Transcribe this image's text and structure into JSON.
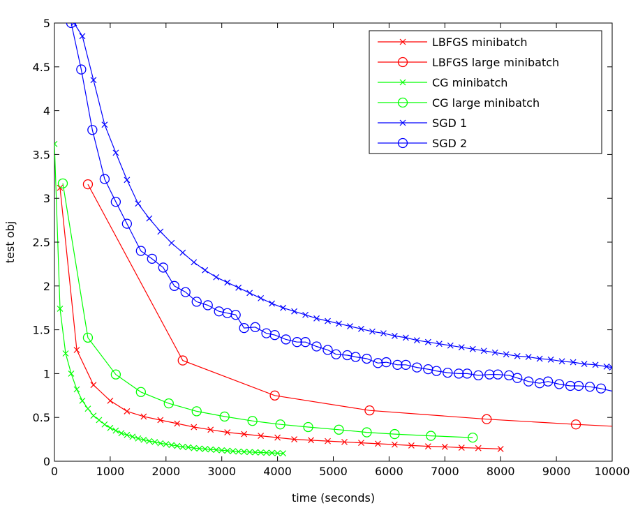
{
  "chart_data": {
    "type": "line",
    "xlabel": "time (seconds)",
    "ylabel": "test obj",
    "xlim": [
      0,
      10000
    ],
    "ylim": [
      0,
      5
    ],
    "xticks": [
      0,
      1000,
      2000,
      3000,
      4000,
      5000,
      6000,
      7000,
      8000,
      9000,
      10000
    ],
    "yticks": [
      0,
      0.5,
      1,
      1.5,
      2,
      2.5,
      3,
      3.5,
      4,
      4.5,
      5
    ],
    "xtick_labels": [
      "0",
      "1000",
      "2000",
      "3000",
      "4000",
      "5000",
      "6000",
      "7000",
      "8000",
      "9000",
      "10000"
    ],
    "ytick_labels": [
      "0",
      "0.5",
      "1",
      "1.5",
      "2",
      "2.5",
      "3",
      "3.5",
      "4",
      "4.5",
      "5"
    ],
    "grid": false,
    "legend_position": "top-right",
    "series": [
      {
        "name": "LBFGS minibatch",
        "color": "#ff0000",
        "marker": "x",
        "x": [
          100,
          400,
          700,
          1000,
          1300,
          1600,
          1900,
          2200,
          2500,
          2800,
          3100,
          3400,
          3700,
          4000,
          4300,
          4600,
          4900,
          5200,
          5500,
          5800,
          6100,
          6400,
          6700,
          7000,
          7300,
          7600,
          8000
        ],
        "y": [
          3.12,
          1.27,
          0.87,
          0.69,
          0.57,
          0.51,
          0.47,
          0.43,
          0.39,
          0.36,
          0.33,
          0.31,
          0.29,
          0.27,
          0.25,
          0.24,
          0.23,
          0.22,
          0.21,
          0.2,
          0.19,
          0.18,
          0.17,
          0.165,
          0.155,
          0.15,
          0.14
        ]
      },
      {
        "name": "LBFGS large minibatch",
        "color": "#ff0000",
        "marker": "o",
        "x": [
          600,
          2300,
          3950,
          5650,
          7750,
          9350,
          10000
        ],
        "y": [
          3.16,
          1.15,
          0.75,
          0.58,
          0.48,
          0.42,
          0.4
        ]
      },
      {
        "name": "CG minibatch",
        "color": "#00ff00",
        "marker": "x",
        "x": [
          0,
          100,
          200,
          300,
          400,
          500,
          600,
          700,
          800,
          900,
          1000,
          1100,
          1200,
          1300,
          1400,
          1500,
          1600,
          1700,
          1800,
          1900,
          2000,
          2100,
          2200,
          2300,
          2400,
          2500,
          2600,
          2700,
          2800,
          2900,
          3000,
          3100,
          3200,
          3300,
          3400,
          3500,
          3600,
          3700,
          3800,
          3900,
          4000,
          4100
        ],
        "y": [
          3.62,
          1.74,
          1.23,
          1.0,
          0.82,
          0.69,
          0.6,
          0.52,
          0.47,
          0.42,
          0.38,
          0.35,
          0.32,
          0.3,
          0.28,
          0.26,
          0.245,
          0.23,
          0.22,
          0.205,
          0.195,
          0.185,
          0.175,
          0.165,
          0.16,
          0.15,
          0.145,
          0.14,
          0.135,
          0.13,
          0.125,
          0.12,
          0.115,
          0.11,
          0.108,
          0.105,
          0.102,
          0.1,
          0.097,
          0.095,
          0.092,
          0.09
        ]
      },
      {
        "name": "CG large minibatch",
        "color": "#00ff00",
        "marker": "o",
        "x": [
          150,
          600,
          1100,
          1550,
          2050,
          2550,
          3050,
          3550,
          4050,
          4550,
          5100,
          5600,
          6100,
          6750,
          7500
        ],
        "y": [
          3.17,
          1.41,
          0.99,
          0.79,
          0.66,
          0.57,
          0.51,
          0.46,
          0.42,
          0.39,
          0.36,
          0.33,
          0.31,
          0.29,
          0.27
        ]
      },
      {
        "name": "SGD 1",
        "color": "#0000ff",
        "marker": "x",
        "x": [
          350,
          500,
          700,
          900,
          1100,
          1300,
          1500,
          1700,
          1900,
          2100,
          2300,
          2500,
          2700,
          2900,
          3100,
          3300,
          3500,
          3700,
          3900,
          4100,
          4300,
          4500,
          4700,
          4900,
          5100,
          5300,
          5500,
          5700,
          5900,
          6100,
          6300,
          6500,
          6700,
          6900,
          7100,
          7300,
          7500,
          7700,
          7900,
          8100,
          8300,
          8500,
          8700,
          8900,
          9100,
          9300,
          9500,
          9700,
          9900,
          10000
        ],
        "y": [
          5.0,
          4.85,
          4.35,
          3.84,
          3.52,
          3.21,
          2.94,
          2.77,
          2.62,
          2.49,
          2.38,
          2.27,
          2.18,
          2.1,
          2.04,
          1.98,
          1.92,
          1.86,
          1.8,
          1.75,
          1.71,
          1.67,
          1.63,
          1.6,
          1.57,
          1.54,
          1.51,
          1.48,
          1.46,
          1.43,
          1.41,
          1.38,
          1.36,
          1.34,
          1.32,
          1.3,
          1.28,
          1.26,
          1.24,
          1.22,
          1.2,
          1.19,
          1.17,
          1.16,
          1.14,
          1.13,
          1.11,
          1.1,
          1.08,
          1.07
        ]
      },
      {
        "name": "SGD 2",
        "color": "#0000ff",
        "marker": "o",
        "x": [
          300,
          480,
          680,
          900,
          1100,
          1300,
          1550,
          1750,
          1950,
          2150,
          2350,
          2550,
          2750,
          2950,
          3100,
          3250,
          3400,
          3600,
          3800,
          3950,
          4150,
          4350,
          4500,
          4700,
          4900,
          5050,
          5250,
          5400,
          5600,
          5800,
          5950,
          6150,
          6300,
          6500,
          6700,
          6850,
          7050,
          7250,
          7400,
          7600,
          7800,
          7950,
          8150,
          8300,
          8500,
          8700,
          8850,
          9050,
          9250,
          9400,
          9600,
          9800,
          10000
        ],
        "y": [
          5.0,
          4.47,
          3.78,
          3.22,
          2.96,
          2.71,
          2.4,
          2.31,
          2.21,
          2.0,
          1.93,
          1.82,
          1.78,
          1.71,
          1.69,
          1.67,
          1.52,
          1.53,
          1.46,
          1.44,
          1.39,
          1.36,
          1.36,
          1.31,
          1.27,
          1.22,
          1.21,
          1.19,
          1.17,
          1.12,
          1.13,
          1.1,
          1.1,
          1.07,
          1.05,
          1.03,
          1.01,
          1.0,
          1.0,
          0.98,
          0.99,
          0.99,
          0.98,
          0.95,
          0.91,
          0.89,
          0.91,
          0.88,
          0.86,
          0.86,
          0.85,
          0.83,
          0.8
        ]
      }
    ]
  }
}
